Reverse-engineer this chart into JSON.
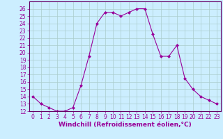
{
  "x": [
    0,
    1,
    2,
    3,
    4,
    5,
    6,
    7,
    8,
    9,
    10,
    11,
    12,
    13,
    14,
    15,
    16,
    17,
    18,
    19,
    20,
    21,
    22,
    23
  ],
  "y": [
    14,
    13,
    12.5,
    12,
    12,
    12.5,
    15.5,
    19.5,
    24,
    25.5,
    25.5,
    25,
    25.5,
    26,
    26,
    22.5,
    19.5,
    19.5,
    21,
    16.5,
    15,
    14,
    13.5,
    13
  ],
  "line_color": "#990099",
  "marker": "D",
  "marker_size": 2,
  "background_color": "#cceeff",
  "grid_color": "#aacccc",
  "xlabel": "Windchill (Refroidissement éolien,°C)",
  "xlabel_fontsize": 6.5,
  "ylim": [
    12,
    27
  ],
  "xlim": [
    -0.5,
    23.5
  ],
  "yticks": [
    12,
    13,
    14,
    15,
    16,
    17,
    18,
    19,
    20,
    21,
    22,
    23,
    24,
    25,
    26
  ],
  "xticks": [
    0,
    1,
    2,
    3,
    4,
    5,
    6,
    7,
    8,
    9,
    10,
    11,
    12,
    13,
    14,
    15,
    16,
    17,
    18,
    19,
    20,
    21,
    22,
    23
  ],
  "tick_fontsize": 5.5,
  "tick_color": "#990099",
  "spine_color": "#660066"
}
